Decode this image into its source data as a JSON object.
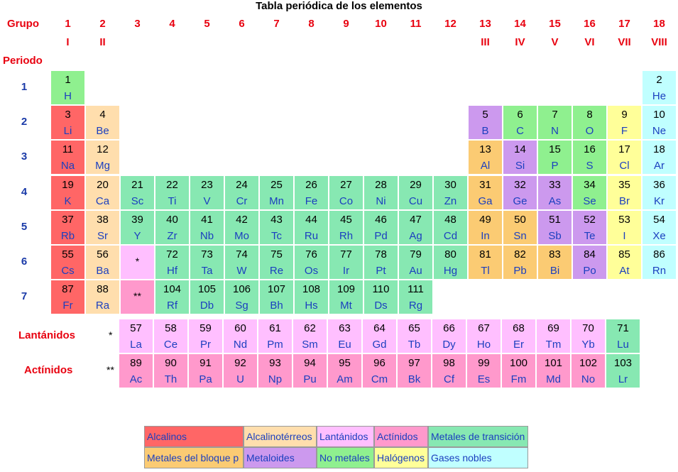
{
  "title": "Tabla periódica de los elementos",
  "labels": {
    "group": "Grupo",
    "period": "Periodo",
    "lanthanides": "Lantánidos",
    "actinides": "Actínidos",
    "star1": "*",
    "star2": "**"
  },
  "groups": [
    "1",
    "2",
    "3",
    "4",
    "5",
    "6",
    "7",
    "8",
    "9",
    "10",
    "11",
    "12",
    "13",
    "14",
    "15",
    "16",
    "17",
    "18"
  ],
  "group_roman": {
    "1": "I",
    "2": "II",
    "13": "III",
    "14": "IV",
    "15": "V",
    "16": "VI",
    "17": "VII",
    "18": "VIII"
  },
  "periods": [
    "1",
    "2",
    "3",
    "4",
    "5",
    "6",
    "7"
  ],
  "colors": {
    "alk": "#ff6666",
    "ae": "#ffdead",
    "lan": "#ffbfff",
    "act": "#ff99cc",
    "tm": "#87e8b2",
    "pm": "#fbcb73",
    "met": "#cc99ee",
    "nm": "#8ff08f",
    "hal": "#ffff99",
    "ng": "#c0ffff"
  },
  "elements": [
    {
      "z": "1",
      "s": "H",
      "g": 1,
      "p": 1,
      "c": "nm"
    },
    {
      "z": "2",
      "s": "He",
      "g": 18,
      "p": 1,
      "c": "ng"
    },
    {
      "z": "3",
      "s": "Li",
      "g": 1,
      "p": 2,
      "c": "alk"
    },
    {
      "z": "4",
      "s": "Be",
      "g": 2,
      "p": 2,
      "c": "ae"
    },
    {
      "z": "5",
      "s": "B",
      "g": 13,
      "p": 2,
      "c": "met"
    },
    {
      "z": "6",
      "s": "C",
      "g": 14,
      "p": 2,
      "c": "nm"
    },
    {
      "z": "7",
      "s": "N",
      "g": 15,
      "p": 2,
      "c": "nm"
    },
    {
      "z": "8",
      "s": "O",
      "g": 16,
      "p": 2,
      "c": "nm"
    },
    {
      "z": "9",
      "s": "F",
      "g": 17,
      "p": 2,
      "c": "hal"
    },
    {
      "z": "10",
      "s": "Ne",
      "g": 18,
      "p": 2,
      "c": "ng"
    },
    {
      "z": "11",
      "s": "Na",
      "g": 1,
      "p": 3,
      "c": "alk"
    },
    {
      "z": "12",
      "s": "Mg",
      "g": 2,
      "p": 3,
      "c": "ae"
    },
    {
      "z": "13",
      "s": "Al",
      "g": 13,
      "p": 3,
      "c": "pm"
    },
    {
      "z": "14",
      "s": "Si",
      "g": 14,
      "p": 3,
      "c": "met"
    },
    {
      "z": "15",
      "s": "P",
      "g": 15,
      "p": 3,
      "c": "nm"
    },
    {
      "z": "16",
      "s": "S",
      "g": 16,
      "p": 3,
      "c": "nm"
    },
    {
      "z": "17",
      "s": "Cl",
      "g": 17,
      "p": 3,
      "c": "hal"
    },
    {
      "z": "18",
      "s": "Ar",
      "g": 18,
      "p": 3,
      "c": "ng"
    },
    {
      "z": "19",
      "s": "K",
      "g": 1,
      "p": 4,
      "c": "alk"
    },
    {
      "z": "20",
      "s": "Ca",
      "g": 2,
      "p": 4,
      "c": "ae"
    },
    {
      "z": "21",
      "s": "Sc",
      "g": 3,
      "p": 4,
      "c": "tm"
    },
    {
      "z": "22",
      "s": "Ti",
      "g": 4,
      "p": 4,
      "c": "tm"
    },
    {
      "z": "23",
      "s": "V",
      "g": 5,
      "p": 4,
      "c": "tm"
    },
    {
      "z": "24",
      "s": "Cr",
      "g": 6,
      "p": 4,
      "c": "tm"
    },
    {
      "z": "25",
      "s": "Mn",
      "g": 7,
      "p": 4,
      "c": "tm"
    },
    {
      "z": "26",
      "s": "Fe",
      "g": 8,
      "p": 4,
      "c": "tm"
    },
    {
      "z": "27",
      "s": "Co",
      "g": 9,
      "p": 4,
      "c": "tm"
    },
    {
      "z": "28",
      "s": "Ni",
      "g": 10,
      "p": 4,
      "c": "tm"
    },
    {
      "z": "29",
      "s": "Cu",
      "g": 11,
      "p": 4,
      "c": "tm"
    },
    {
      "z": "30",
      "s": "Zn",
      "g": 12,
      "p": 4,
      "c": "tm"
    },
    {
      "z": "31",
      "s": "Ga",
      "g": 13,
      "p": 4,
      "c": "pm"
    },
    {
      "z": "32",
      "s": "Ge",
      "g": 14,
      "p": 4,
      "c": "met"
    },
    {
      "z": "33",
      "s": "As",
      "g": 15,
      "p": 4,
      "c": "met"
    },
    {
      "z": "34",
      "s": "Se",
      "g": 16,
      "p": 4,
      "c": "nm"
    },
    {
      "z": "35",
      "s": "Br",
      "g": 17,
      "p": 4,
      "c": "hal"
    },
    {
      "z": "36",
      "s": "Kr",
      "g": 18,
      "p": 4,
      "c": "ng"
    },
    {
      "z": "37",
      "s": "Rb",
      "g": 1,
      "p": 5,
      "c": "alk"
    },
    {
      "z": "38",
      "s": "Sr",
      "g": 2,
      "p": 5,
      "c": "ae"
    },
    {
      "z": "39",
      "s": "Y",
      "g": 3,
      "p": 5,
      "c": "tm"
    },
    {
      "z": "40",
      "s": "Zr",
      "g": 4,
      "p": 5,
      "c": "tm"
    },
    {
      "z": "41",
      "s": "Nb",
      "g": 5,
      "p": 5,
      "c": "tm"
    },
    {
      "z": "42",
      "s": "Mo",
      "g": 6,
      "p": 5,
      "c": "tm"
    },
    {
      "z": "43",
      "s": "Tc",
      "g": 7,
      "p": 5,
      "c": "tm"
    },
    {
      "z": "44",
      "s": "Ru",
      "g": 8,
      "p": 5,
      "c": "tm"
    },
    {
      "z": "45",
      "s": "Rh",
      "g": 9,
      "p": 5,
      "c": "tm"
    },
    {
      "z": "46",
      "s": "Pd",
      "g": 10,
      "p": 5,
      "c": "tm"
    },
    {
      "z": "47",
      "s": "Ag",
      "g": 11,
      "p": 5,
      "c": "tm"
    },
    {
      "z": "48",
      "s": "Cd",
      "g": 12,
      "p": 5,
      "c": "tm"
    },
    {
      "z": "49",
      "s": "In",
      "g": 13,
      "p": 5,
      "c": "pm"
    },
    {
      "z": "50",
      "s": "Sn",
      "g": 14,
      "p": 5,
      "c": "pm"
    },
    {
      "z": "51",
      "s": "Sb",
      "g": 15,
      "p": 5,
      "c": "met"
    },
    {
      "z": "52",
      "s": "Te",
      "g": 16,
      "p": 5,
      "c": "met"
    },
    {
      "z": "53",
      "s": "I",
      "g": 17,
      "p": 5,
      "c": "hal"
    },
    {
      "z": "54",
      "s": "Xe",
      "g": 18,
      "p": 5,
      "c": "ng"
    },
    {
      "z": "55",
      "s": "Cs",
      "g": 1,
      "p": 6,
      "c": "alk"
    },
    {
      "z": "56",
      "s": "Ba",
      "g": 2,
      "p": 6,
      "c": "ae"
    },
    {
      "z": "72",
      "s": "Hf",
      "g": 4,
      "p": 6,
      "c": "tm"
    },
    {
      "z": "73",
      "s": "Ta",
      "g": 5,
      "p": 6,
      "c": "tm"
    },
    {
      "z": "74",
      "s": "W",
      "g": 6,
      "p": 6,
      "c": "tm"
    },
    {
      "z": "75",
      "s": "Re",
      "g": 7,
      "p": 6,
      "c": "tm"
    },
    {
      "z": "76",
      "s": "Os",
      "g": 8,
      "p": 6,
      "c": "tm"
    },
    {
      "z": "77",
      "s": "Ir",
      "g": 9,
      "p": 6,
      "c": "tm"
    },
    {
      "z": "78",
      "s": "Pt",
      "g": 10,
      "p": 6,
      "c": "tm"
    },
    {
      "z": "79",
      "s": "Au",
      "g": 11,
      "p": 6,
      "c": "tm"
    },
    {
      "z": "80",
      "s": "Hg",
      "g": 12,
      "p": 6,
      "c": "tm"
    },
    {
      "z": "81",
      "s": "Tl",
      "g": 13,
      "p": 6,
      "c": "pm"
    },
    {
      "z": "82",
      "s": "Pb",
      "g": 14,
      "p": 6,
      "c": "pm"
    },
    {
      "z": "83",
      "s": "Bi",
      "g": 15,
      "p": 6,
      "c": "pm"
    },
    {
      "z": "84",
      "s": "Po",
      "g": 16,
      "p": 6,
      "c": "met"
    },
    {
      "z": "85",
      "s": "At",
      "g": 17,
      "p": 6,
      "c": "hal"
    },
    {
      "z": "86",
      "s": "Rn",
      "g": 18,
      "p": 6,
      "c": "ng"
    },
    {
      "z": "87",
      "s": "Fr",
      "g": 1,
      "p": 7,
      "c": "alk"
    },
    {
      "z": "88",
      "s": "Ra",
      "g": 2,
      "p": 7,
      "c": "ae"
    },
    {
      "z": "104",
      "s": "Rf",
      "g": 4,
      "p": 7,
      "c": "tm"
    },
    {
      "z": "105",
      "s": "Db",
      "g": 5,
      "p": 7,
      "c": "tm"
    },
    {
      "z": "106",
      "s": "Sg",
      "g": 6,
      "p": 7,
      "c": "tm"
    },
    {
      "z": "107",
      "s": "Bh",
      "g": 7,
      "p": 7,
      "c": "tm"
    },
    {
      "z": "108",
      "s": "Hs",
      "g": 8,
      "p": 7,
      "c": "tm"
    },
    {
      "z": "109",
      "s": "Mt",
      "g": 9,
      "p": 7,
      "c": "tm"
    },
    {
      "z": "110",
      "s": "Ds",
      "g": 10,
      "p": 7,
      "c": "tm"
    },
    {
      "z": "111",
      "s": "Rg",
      "g": 11,
      "p": 7,
      "c": "tm"
    }
  ],
  "placeholders": [
    {
      "g": 3,
      "p": 6,
      "mark": "*",
      "c": "lan"
    },
    {
      "g": 3,
      "p": 7,
      "mark": "**",
      "c": "act"
    }
  ],
  "lanthanides": [
    {
      "z": "57",
      "s": "La"
    },
    {
      "z": "58",
      "s": "Ce"
    },
    {
      "z": "59",
      "s": "Pr"
    },
    {
      "z": "60",
      "s": "Nd"
    },
    {
      "z": "61",
      "s": "Pm"
    },
    {
      "z": "62",
      "s": "Sm"
    },
    {
      "z": "63",
      "s": "Eu"
    },
    {
      "z": "64",
      "s": "Gd"
    },
    {
      "z": "65",
      "s": "Tb"
    },
    {
      "z": "66",
      "s": "Dy"
    },
    {
      "z": "67",
      "s": "Ho"
    },
    {
      "z": "68",
      "s": "Er"
    },
    {
      "z": "69",
      "s": "Tm"
    },
    {
      "z": "70",
      "s": "Yb"
    },
    {
      "z": "71",
      "s": "Lu",
      "c": "tm"
    }
  ],
  "actinides": [
    {
      "z": "89",
      "s": "Ac"
    },
    {
      "z": "90",
      "s": "Th"
    },
    {
      "z": "91",
      "s": "Pa"
    },
    {
      "z": "92",
      "s": "U"
    },
    {
      "z": "93",
      "s": "Np"
    },
    {
      "z": "94",
      "s": "Pu"
    },
    {
      "z": "95",
      "s": "Am"
    },
    {
      "z": "96",
      "s": "Cm"
    },
    {
      "z": "97",
      "s": "Bk"
    },
    {
      "z": "98",
      "s": "Cf"
    },
    {
      "z": "99",
      "s": "Es"
    },
    {
      "z": "100",
      "s": "Fm"
    },
    {
      "z": "101",
      "s": "Md"
    },
    {
      "z": "102",
      "s": "No"
    },
    {
      "z": "103",
      "s": "Lr",
      "c": "tm"
    }
  ],
  "legend": [
    {
      "label": "Alcalinos",
      "c": "alk"
    },
    {
      "label": "Alcalinotérreos",
      "c": "ae"
    },
    {
      "label": "Lantánidos",
      "c": "lan"
    },
    {
      "label": "Actínidos",
      "c": "act"
    },
    {
      "label": "Metales de transición",
      "c": "tm"
    },
    {
      "label": "Metales del bloque p",
      "c": "pm"
    },
    {
      "label": "Metaloides",
      "c": "met"
    },
    {
      "label": "No metales",
      "c": "nm"
    },
    {
      "label": "Halógenos",
      "c": "hal"
    },
    {
      "label": "Gases nobles",
      "c": "ng"
    }
  ]
}
